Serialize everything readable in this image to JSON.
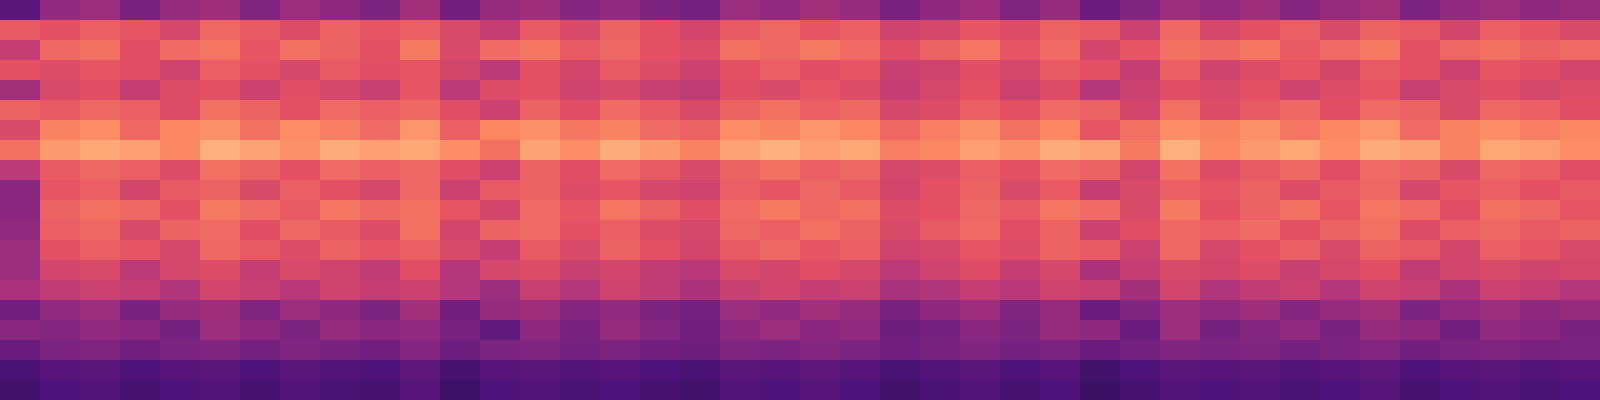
{
  "chart_data": {
    "type": "heatmap",
    "color": "magma",
    "zlim": [
      0,
      100
    ],
    "tick_labels": false,
    "cells": [
      [
        28,
        42,
        44,
        36,
        43,
        45,
        38,
        44,
        41,
        37,
        46,
        34,
        43,
        45,
        39,
        42,
        37,
        35,
        44,
        42,
        46,
        43,
        36,
        41,
        45,
        38,
        43,
        32,
        38,
        44,
        42,
        45,
        39,
        43,
        46,
        37,
        42,
        44,
        41,
        43
      ],
      [
        65,
        63,
        66,
        64,
        59,
        68,
        65,
        61,
        67,
        64,
        66,
        60,
        54,
        65,
        60,
        67,
        63,
        58,
        65,
        68,
        64,
        66,
        57,
        59,
        64,
        61,
        67,
        65,
        56,
        68,
        59,
        63,
        66,
        60,
        67,
        65,
        58,
        66,
        64,
        60
      ],
      [
        54,
        68,
        70,
        62,
        69,
        71,
        64,
        70,
        67,
        63,
        72,
        60,
        69,
        71,
        65,
        68,
        63,
        61,
        70,
        68,
        72,
        69,
        62,
        67,
        71,
        64,
        69,
        58,
        64,
        70,
        68,
        71,
        65,
        69,
        72,
        63,
        68,
        70,
        67,
        69
      ],
      [
        63,
        61,
        64,
        62,
        57,
        66,
        63,
        59,
        65,
        62,
        64,
        58,
        52,
        63,
        58,
        65,
        61,
        56,
        63,
        66,
        62,
        64,
        55,
        57,
        62,
        59,
        65,
        63,
        54,
        66,
        57,
        61,
        64,
        58,
        65,
        63,
        56,
        64,
        62,
        58
      ],
      [
        46,
        60,
        62,
        54,
        61,
        63,
        56,
        62,
        59,
        55,
        64,
        52,
        61,
        63,
        57,
        60,
        55,
        53,
        62,
        60,
        64,
        61,
        54,
        59,
        63,
        56,
        61,
        50,
        56,
        62,
        60,
        63,
        57,
        61,
        64,
        55,
        60,
        62,
        59,
        61
      ],
      [
        67,
        65,
        68,
        66,
        61,
        70,
        67,
        63,
        69,
        66,
        68,
        62,
        56,
        67,
        62,
        69,
        65,
        60,
        67,
        70,
        66,
        68,
        59,
        61,
        66,
        63,
        69,
        67,
        58,
        70,
        61,
        65,
        68,
        62,
        69,
        67,
        60,
        68,
        66,
        62
      ],
      [
        60,
        74,
        76,
        68,
        75,
        77,
        70,
        76,
        73,
        69,
        78,
        66,
        75,
        77,
        71,
        74,
        69,
        67,
        76,
        74,
        78,
        75,
        68,
        73,
        77,
        70,
        75,
        64,
        70,
        76,
        74,
        77,
        71,
        75,
        78,
        69,
        74,
        76,
        73,
        75
      ],
      [
        70,
        79,
        82,
        80,
        75,
        84,
        81,
        77,
        83,
        80,
        82,
        76,
        70,
        81,
        76,
        83,
        79,
        74,
        81,
        84,
        80,
        82,
        73,
        75,
        80,
        77,
        83,
        81,
        72,
        84,
        75,
        79,
        82,
        76,
        83,
        81,
        74,
        82,
        80,
        76
      ],
      [
        52,
        65,
        68,
        66,
        61,
        70,
        67,
        63,
        69,
        66,
        68,
        62,
        56,
        67,
        62,
        69,
        65,
        60,
        67,
        70,
        66,
        68,
        59,
        61,
        66,
        63,
        69,
        67,
        58,
        70,
        61,
        65,
        68,
        62,
        69,
        67,
        60,
        68,
        66,
        62
      ],
      [
        40,
        64,
        66,
        58,
        65,
        67,
        60,
        66,
        63,
        59,
        68,
        56,
        65,
        67,
        61,
        64,
        59,
        57,
        66,
        64,
        68,
        65,
        58,
        63,
        67,
        60,
        65,
        54,
        60,
        66,
        64,
        67,
        61,
        65,
        68,
        59,
        64,
        66,
        63,
        65
      ],
      [
        40,
        67,
        70,
        68,
        63,
        72,
        69,
        65,
        71,
        68,
        70,
        64,
        58,
        69,
        64,
        71,
        67,
        62,
        69,
        72,
        68,
        70,
        61,
        63,
        68,
        65,
        71,
        69,
        60,
        72,
        63,
        67,
        70,
        64,
        71,
        69,
        62,
        70,
        68,
        64
      ],
      [
        42,
        66,
        68,
        60,
        67,
        69,
        62,
        68,
        65,
        61,
        70,
        58,
        67,
        69,
        63,
        66,
        61,
        59,
        68,
        66,
        70,
        67,
        60,
        65,
        69,
        62,
        67,
        56,
        62,
        68,
        66,
        69,
        63,
        67,
        70,
        61,
        66,
        68,
        65,
        67
      ],
      [
        44,
        63,
        66,
        64,
        59,
        68,
        65,
        61,
        67,
        64,
        66,
        60,
        54,
        65,
        60,
        67,
        63,
        58,
        65,
        68,
        64,
        66,
        57,
        59,
        64,
        61,
        67,
        65,
        56,
        68,
        59,
        63,
        66,
        60,
        67,
        65,
        58,
        66,
        64,
        60
      ],
      [
        44,
        58,
        60,
        52,
        59,
        61,
        54,
        60,
        57,
        53,
        62,
        50,
        59,
        61,
        55,
        58,
        53,
        51,
        60,
        58,
        62,
        59,
        52,
        57,
        61,
        54,
        59,
        48,
        54,
        60,
        58,
        61,
        55,
        59,
        62,
        53,
        58,
        60,
        57,
        59
      ],
      [
        48,
        53,
        56,
        54,
        49,
        58,
        55,
        51,
        57,
        54,
        56,
        50,
        44,
        55,
        50,
        57,
        53,
        48,
        55,
        58,
        54,
        56,
        47,
        49,
        54,
        51,
        57,
        55,
        46,
        58,
        49,
        53,
        56,
        50,
        57,
        55,
        48,
        56,
        54,
        50
      ],
      [
        34,
        42,
        44,
        36,
        43,
        45,
        38,
        44,
        41,
        37,
        46,
        34,
        43,
        45,
        39,
        42,
        37,
        35,
        44,
        42,
        46,
        43,
        36,
        41,
        45,
        38,
        43,
        32,
        38,
        44,
        42,
        45,
        39,
        43,
        46,
        37,
        42,
        44,
        41,
        43
      ],
      [
        40,
        39,
        42,
        40,
        35,
        44,
        41,
        37,
        43,
        40,
        42,
        36,
        30,
        41,
        36,
        43,
        39,
        34,
        41,
        44,
        40,
        42,
        33,
        35,
        40,
        37,
        43,
        41,
        32,
        44,
        35,
        39,
        42,
        36,
        43,
        41,
        34,
        42,
        40,
        36
      ],
      [
        32,
        37,
        38,
        34,
        37,
        38,
        35,
        38,
        36,
        34,
        39,
        33,
        37,
        38,
        35,
        37,
        34,
        33,
        38,
        37,
        39,
        37,
        34,
        36,
        38,
        35,
        37,
        32,
        35,
        38,
        37,
        38,
        35,
        37,
        39,
        34,
        37,
        38,
        36,
        37
      ],
      [
        24,
        27,
        28,
        25,
        27,
        28,
        25,
        28,
        26,
        25,
        29,
        23,
        27,
        28,
        26,
        27,
        25,
        24,
        28,
        27,
        29,
        27,
        24,
        26,
        28,
        25,
        27,
        22,
        25,
        28,
        27,
        28,
        26,
        27,
        29,
        25,
        27,
        28,
        26,
        27
      ],
      [
        22,
        25,
        26,
        23,
        25,
        26,
        23,
        26,
        24,
        23,
        27,
        21,
        25,
        26,
        24,
        25,
        23,
        22,
        26,
        25,
        27,
        25,
        22,
        24,
        26,
        23,
        25,
        20,
        23,
        26,
        25,
        26,
        24,
        25,
        27,
        23,
        25,
        26,
        24,
        25
      ]
    ]
  }
}
